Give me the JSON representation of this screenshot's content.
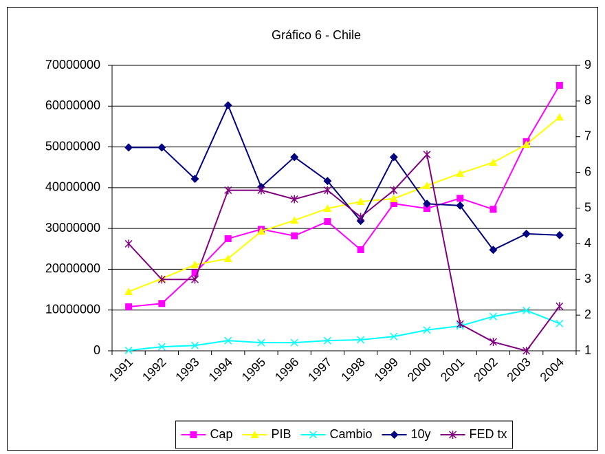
{
  "chart_data": {
    "type": "line",
    "title": "Gráfico 6 - Chile",
    "categories": [
      "1991",
      "1992",
      "1993",
      "1994",
      "1995",
      "1996",
      "1997",
      "1998",
      "1999",
      "2000",
      "2001",
      "2002",
      "2003",
      "2004"
    ],
    "ylim": [
      0,
      70000000
    ],
    "yticks": [
      0,
      10000000,
      20000000,
      30000000,
      40000000,
      50000000,
      60000000,
      70000000
    ],
    "y2lim": [
      1,
      9
    ],
    "y2ticks": [
      1,
      2,
      3,
      4,
      5,
      6,
      7,
      8,
      9
    ],
    "grid": true,
    "legend": "bottom",
    "series": [
      {
        "name": "Cap",
        "color": "#ff00ff",
        "marker": "square",
        "values": [
          10800000,
          11600000,
          19100000,
          27500000,
          29800000,
          28200000,
          31700000,
          24800000,
          36100000,
          34900000,
          37400000,
          34700000,
          51300000,
          65100000
        ]
      },
      {
        "name": "PIB",
        "color": "#ffff00",
        "marker": "triangle",
        "values": [
          14500000,
          17700000,
          21100000,
          22600000,
          29300000,
          32000000,
          34900000,
          36600000,
          37300000,
          40500000,
          43500000,
          46200000,
          50600000,
          57300000
        ]
      },
      {
        "name": "Cambio",
        "color": "#00ffff",
        "marker": "x",
        "values": [
          100000,
          1000000,
          1300000,
          2500000,
          2000000,
          2000000,
          2500000,
          2700000,
          3500000,
          5100000,
          6100000,
          8400000,
          9900000,
          6700000
        ]
      },
      {
        "name": "10y",
        "color": "#000080",
        "marker": "diamond",
        "axis": "y2",
        "values": [
          6.7,
          6.7,
          5.82,
          7.88,
          5.59,
          6.43,
          5.76,
          4.64,
          6.43,
          5.12,
          5.07,
          3.83,
          4.28,
          4.24
        ]
      },
      {
        "name": "FED tx",
        "color": "#800080",
        "marker": "star",
        "axis": "y2",
        "values": [
          4,
          3,
          3,
          5.5,
          5.5,
          5.25,
          5.5,
          4.75,
          5.5,
          6.5,
          1.75,
          1.25,
          1,
          2.25
        ]
      }
    ]
  }
}
